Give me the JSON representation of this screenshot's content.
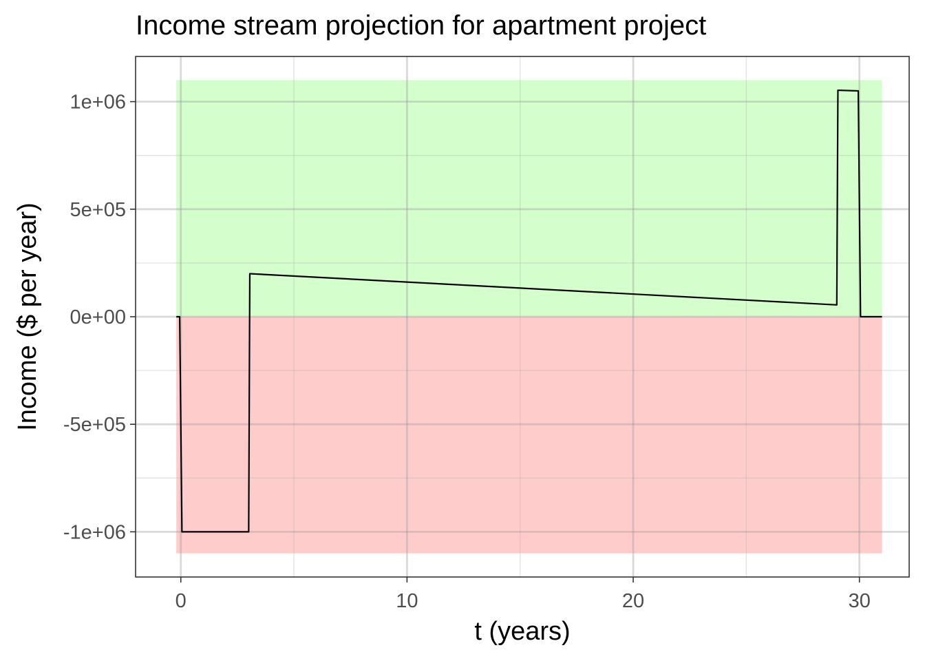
{
  "chart_data": {
    "type": "line",
    "title": "Income stream projection for apartment project",
    "xlabel": "t (years)",
    "ylabel": "Income ($ per year)",
    "xlim": [
      -2,
      32.2
    ],
    "ylim": [
      -1210000,
      1210000
    ],
    "x_ticks": [
      {
        "value": 0,
        "label": "0"
      },
      {
        "value": 10,
        "label": "10"
      },
      {
        "value": 20,
        "label": "20"
      },
      {
        "value": 30,
        "label": "30"
      }
    ],
    "x_minor_ticks": [
      5,
      15,
      25
    ],
    "y_ticks": [
      {
        "value": 1000000,
        "label": "1e+06"
      },
      {
        "value": 500000,
        "label": "5e+05"
      },
      {
        "value": 0,
        "label": "0e+00"
      },
      {
        "value": -500000,
        "label": "-5e+05"
      },
      {
        "value": -1000000,
        "label": "-1e+06"
      }
    ],
    "y_minor_ticks": [
      750000,
      250000,
      -250000,
      -750000
    ],
    "grid": true,
    "regions": [
      {
        "name": "positive",
        "x": [
          -0.2,
          31
        ],
        "y": [
          0,
          1100000
        ],
        "color": "#d4ffcc"
      },
      {
        "name": "negative",
        "x": [
          -0.2,
          31
        ],
        "y": [
          -1100000,
          0
        ],
        "color": "#ffcccc"
      }
    ],
    "series": [
      {
        "color": "#000000",
        "x": [
          -0.2,
          -0.05,
          0.05,
          3.0,
          3.05,
          29.0,
          29.05,
          29.95,
          30.05,
          31.0
        ],
        "y": [
          0,
          0,
          -1000000,
          -1000000,
          200000,
          55000,
          1053000,
          1050000,
          0,
          0
        ]
      }
    ]
  }
}
